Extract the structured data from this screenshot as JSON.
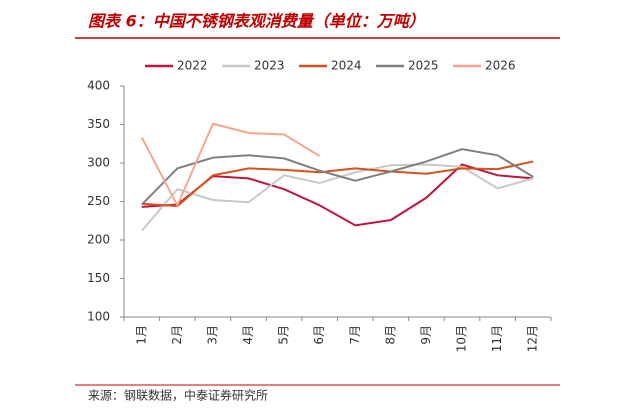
{
  "chart_data": {
    "type": "line",
    "title": "图表 6：中国不锈钢表观消费量（单位：万吨）",
    "source": "来源：钢联数据，中泰证券研究所",
    "categories": [
      "1月",
      "2月",
      "3月",
      "4月",
      "5月",
      "6月",
      "7月",
      "8月",
      "9月",
      "10月",
      "11月",
      "12月"
    ],
    "series": [
      {
        "name": "2022",
        "color": "#c0143c",
        "values": [
          243,
          246,
          283,
          280,
          266,
          245,
          219,
          226,
          255,
          298,
          284,
          280
        ]
      },
      {
        "name": "2023",
        "color": "#c8c8c8",
        "values": [
          212,
          266,
          252,
          249,
          284,
          274,
          288,
          297,
          298,
          295,
          267,
          280
        ]
      },
      {
        "name": "2024",
        "color": "#d9501e",
        "values": [
          247,
          244,
          284,
          293,
          291,
          288,
          293,
          289,
          286,
          293,
          292,
          302
        ]
      },
      {
        "name": "2025",
        "color": "#808080",
        "values": [
          246,
          293,
          307,
          310,
          306,
          290,
          277,
          289,
          302,
          318,
          310,
          282
        ]
      },
      {
        "name": "2026",
        "color": "#f6a58c",
        "values": [
          333,
          245,
          351,
          339,
          337,
          309,
          null,
          null,
          null,
          null,
          null,
          null
        ]
      }
    ],
    "ylim": [
      100,
      400
    ],
    "yticks": [
      100,
      150,
      200,
      250,
      300,
      350,
      400
    ],
    "legend": "top"
  }
}
